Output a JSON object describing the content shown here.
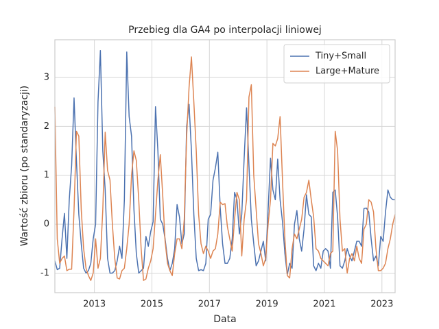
{
  "chart_data": {
    "type": "line",
    "title": "Przebieg dla GA4 po interpolacji liniowej",
    "x_label": "Data",
    "y_label": "Wartość zbioru (po standaryzacji)",
    "x": [
      2011.625,
      2011.708,
      2011.792,
      2011.875,
      2011.958,
      2012.042,
      2012.125,
      2012.208,
      2012.292,
      2012.375,
      2012.458,
      2012.542,
      2012.625,
      2012.708,
      2012.792,
      2012.875,
      2012.958,
      2013.042,
      2013.125,
      2013.208,
      2013.292,
      2013.375,
      2013.458,
      2013.542,
      2013.625,
      2013.708,
      2013.792,
      2013.875,
      2013.958,
      2014.042,
      2014.125,
      2014.208,
      2014.292,
      2014.375,
      2014.458,
      2014.542,
      2014.625,
      2014.708,
      2014.792,
      2014.875,
      2014.958,
      2015.042,
      2015.125,
      2015.208,
      2015.292,
      2015.375,
      2015.458,
      2015.542,
      2015.625,
      2015.708,
      2015.792,
      2015.875,
      2015.958,
      2016.042,
      2016.125,
      2016.208,
      2016.292,
      2016.375,
      2016.458,
      2016.542,
      2016.625,
      2016.708,
      2016.792,
      2016.875,
      2016.958,
      2017.042,
      2017.125,
      2017.208,
      2017.292,
      2017.375,
      2017.458,
      2017.542,
      2017.625,
      2017.708,
      2017.792,
      2017.875,
      2017.958,
      2018.042,
      2018.125,
      2018.208,
      2018.292,
      2018.375,
      2018.458,
      2018.542,
      2018.625,
      2018.708,
      2018.792,
      2018.875,
      2018.958,
      2019.042,
      2019.125,
      2019.208,
      2019.292,
      2019.375,
      2019.458,
      2019.542,
      2019.625,
      2019.708,
      2019.792,
      2019.875,
      2019.958,
      2020.042,
      2020.125,
      2020.208,
      2020.292,
      2020.375,
      2020.458,
      2020.542,
      2020.625,
      2020.708,
      2020.792,
      2020.875,
      2020.958,
      2021.042,
      2021.125,
      2021.208,
      2021.292,
      2021.375,
      2021.458,
      2021.542,
      2021.625,
      2021.708,
      2021.792,
      2021.875,
      2021.958,
      2022.042,
      2022.125,
      2022.208,
      2022.292,
      2022.375,
      2022.458,
      2022.542,
      2022.625,
      2022.708,
      2022.792,
      2022.875,
      2022.958,
      2023.042,
      2023.125,
      2023.208,
      2023.292,
      2023.375,
      2023.458
    ],
    "series": [
      {
        "name": "Tiny+Small",
        "color": "#4c72b0",
        "values": [
          -0.75,
          -0.93,
          -0.9,
          -0.3,
          0.22,
          -0.7,
          0.5,
          1.2,
          2.58,
          1.3,
          0.2,
          -0.4,
          -0.9,
          -1.0,
          -0.95,
          -0.8,
          -0.3,
          0.0,
          2.5,
          3.55,
          1.5,
          0.7,
          -0.7,
          -1.0,
          -1.0,
          -0.95,
          -0.75,
          -0.45,
          -0.7,
          0.5,
          3.52,
          2.2,
          1.8,
          0.3,
          -0.6,
          -1.0,
          -0.95,
          -0.9,
          -0.25,
          -0.45,
          -0.15,
          0.05,
          2.4,
          1.5,
          0.1,
          0.0,
          -0.3,
          -0.7,
          -0.95,
          -0.8,
          -0.5,
          0.4,
          0.15,
          -0.4,
          -0.2,
          2.0,
          2.45,
          1.5,
          0.2,
          -0.7,
          -0.95,
          -0.93,
          -0.95,
          -0.8,
          0.1,
          0.2,
          0.9,
          1.15,
          1.47,
          0.35,
          -0.4,
          -0.8,
          -0.8,
          -0.7,
          -0.3,
          0.65,
          0.5,
          -0.2,
          0.2,
          1.35,
          2.38,
          1.2,
          0.1,
          -0.4,
          -0.85,
          -0.75,
          -0.55,
          -0.35,
          -0.75,
          0.3,
          1.35,
          0.7,
          0.5,
          1.33,
          0.5,
          0.05,
          -0.6,
          -1.03,
          -0.8,
          -0.9,
          0.0,
          0.28,
          -0.3,
          -0.55,
          -0.1,
          0.6,
          0.2,
          0.15,
          -0.85,
          -0.95,
          -0.8,
          -0.9,
          -0.55,
          -0.5,
          -0.55,
          -0.9,
          0.65,
          0.7,
          0.15,
          -0.85,
          -0.9,
          -0.75,
          -0.5,
          -0.65,
          -0.75,
          -0.55,
          -0.35,
          -0.35,
          -0.45,
          0.32,
          0.33,
          0.25,
          -0.3,
          -0.75,
          -0.65,
          -0.85,
          -0.25,
          -0.35,
          0.25,
          0.7,
          0.55,
          0.5,
          0.5
        ]
      },
      {
        "name": "Large+Mature",
        "color": "#dd8452",
        "values": [
          2.4,
          -0.3,
          -0.8,
          -0.7,
          -0.65,
          -0.95,
          -0.92,
          -0.92,
          0.3,
          1.9,
          1.8,
          0.3,
          -0.5,
          -0.9,
          -1.05,
          -1.15,
          -1.0,
          -0.3,
          -0.9,
          -0.7,
          0.3,
          1.88,
          1.1,
          0.9,
          0.0,
          -0.7,
          -1.1,
          -1.12,
          -0.95,
          -0.9,
          -0.5,
          0.0,
          1.0,
          1.5,
          1.3,
          0.5,
          -0.5,
          -1.15,
          -1.12,
          -0.9,
          -0.75,
          -0.5,
          0.2,
          0.9,
          1.42,
          0.6,
          -0.35,
          -0.8,
          -0.95,
          -1.05,
          -0.6,
          -0.3,
          -0.3,
          -0.5,
          0.1,
          1.8,
          2.8,
          3.42,
          2.5,
          1.5,
          0.2,
          -0.4,
          -0.6,
          -0.45,
          -0.55,
          -0.7,
          -0.55,
          -0.5,
          -0.2,
          0.45,
          0.4,
          0.42,
          -0.05,
          -0.3,
          -0.55,
          0.1,
          0.65,
          0.5,
          -0.65,
          0.1,
          0.5,
          2.6,
          2.85,
          1.0,
          0.3,
          -0.4,
          -0.6,
          -0.85,
          -0.7,
          0.0,
          0.5,
          1.65,
          1.6,
          1.75,
          2.2,
          0.9,
          -0.3,
          -1.05,
          -1.1,
          -0.5,
          -0.2,
          -0.3,
          -0.1,
          0.1,
          0.55,
          0.65,
          0.9,
          0.5,
          0.15,
          -0.5,
          -0.55,
          -0.7,
          -0.75,
          -0.8,
          -0.85,
          -0.6,
          -0.55,
          1.9,
          1.5,
          0.1,
          -0.55,
          -0.5,
          -1.0,
          -0.7,
          -0.6,
          -0.75,
          -0.45,
          -0.7,
          -0.8,
          -0.1,
          0.0,
          0.5,
          0.45,
          0.25,
          -0.5,
          -0.95,
          -0.95,
          -0.9,
          -0.8,
          -0.5,
          -0.3,
          0.0,
          0.2
        ]
      }
    ],
    "xlim": [
      2011.625,
      2023.458
    ],
    "ylim": [
      -1.4,
      3.77
    ],
    "xticks": [
      2013,
      2015,
      2017,
      2019,
      2021,
      2023
    ],
    "yticks": [
      -1,
      0,
      1,
      2,
      3
    ],
    "grid": true,
    "legend": "upper right"
  }
}
